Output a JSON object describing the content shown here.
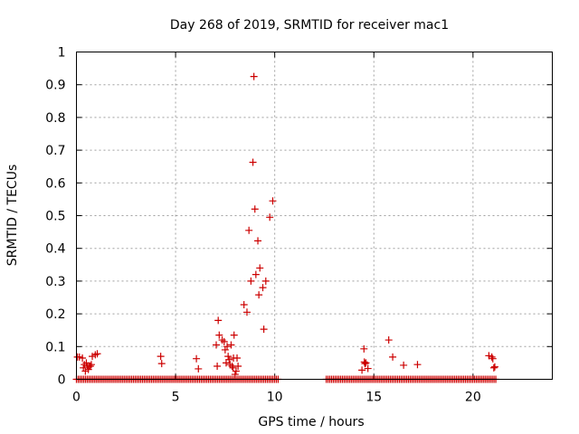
{
  "chart_data": {
    "type": "scatter",
    "title": "Day 268 of 2019, SRMTID for receiver mac1",
    "xlabel": "GPS time / hours",
    "ylabel": "SRMTID / TECUs",
    "xlim": [
      0,
      24
    ],
    "ylim": [
      0,
      1
    ],
    "xticks": [
      0,
      5,
      10,
      15,
      20
    ],
    "yticks": [
      0,
      0.1,
      0.2,
      0.3,
      0.4,
      0.5,
      0.6,
      0.7,
      0.8,
      0.9,
      1
    ],
    "xtick_labels": [
      "0",
      "5",
      "10",
      "15",
      "20"
    ],
    "ytick_labels": [
      "0",
      "0.1",
      "0.2",
      "0.3",
      "0.4",
      "0.5",
      "0.6",
      "0.7",
      "0.8",
      "0.9",
      "1"
    ],
    "grid": true,
    "marker": "+",
    "marker_color": "#cc0000",
    "zero_segments": [
      [
        0.0,
        10.25
      ],
      [
        12.6,
        21.15
      ]
    ],
    "zero_step": 0.09,
    "points": [
      [
        0.05,
        0.068
      ],
      [
        0.15,
        0.068
      ],
      [
        0.3,
        0.065
      ],
      [
        0.35,
        0.035
      ],
      [
        0.4,
        0.045
      ],
      [
        0.45,
        0.025
      ],
      [
        0.5,
        0.05
      ],
      [
        0.55,
        0.04
      ],
      [
        0.6,
        0.03
      ],
      [
        0.65,
        0.04
      ],
      [
        0.7,
        0.04
      ],
      [
        0.75,
        0.045
      ],
      [
        0.8,
        0.07
      ],
      [
        0.95,
        0.075
      ],
      [
        1.05,
        0.078
      ],
      [
        4.25,
        0.07
      ],
      [
        4.3,
        0.048
      ],
      [
        6.05,
        0.063
      ],
      [
        6.15,
        0.032
      ],
      [
        7.05,
        0.105
      ],
      [
        7.1,
        0.04
      ],
      [
        7.15,
        0.18
      ],
      [
        7.2,
        0.135
      ],
      [
        7.35,
        0.12
      ],
      [
        7.45,
        0.115
      ],
      [
        7.5,
        0.09
      ],
      [
        7.55,
        0.05
      ],
      [
        7.6,
        0.1
      ],
      [
        7.65,
        0.07
      ],
      [
        7.7,
        0.06
      ],
      [
        7.75,
        0.045
      ],
      [
        7.8,
        0.105
      ],
      [
        7.85,
        0.04
      ],
      [
        7.9,
        0.035
      ],
      [
        7.92,
        0.065
      ],
      [
        7.95,
        0.135
      ],
      [
        8.0,
        0.015
      ],
      [
        8.05,
        0.025
      ],
      [
        8.1,
        0.065
      ],
      [
        8.15,
        0.04
      ],
      [
        8.45,
        0.228
      ],
      [
        8.6,
        0.205
      ],
      [
        8.7,
        0.455
      ],
      [
        8.8,
        0.3
      ],
      [
        8.9,
        0.663
      ],
      [
        8.95,
        0.925
      ],
      [
        9.0,
        0.52
      ],
      [
        9.05,
        0.32
      ],
      [
        9.15,
        0.423
      ],
      [
        9.2,
        0.258
      ],
      [
        9.25,
        0.34
      ],
      [
        9.4,
        0.28
      ],
      [
        9.45,
        0.153
      ],
      [
        9.55,
        0.3
      ],
      [
        9.75,
        0.495
      ],
      [
        9.9,
        0.545
      ],
      [
        14.4,
        0.028
      ],
      [
        14.5,
        0.093
      ],
      [
        14.52,
        0.053
      ],
      [
        14.55,
        0.048
      ],
      [
        14.6,
        0.05
      ],
      [
        14.7,
        0.033
      ],
      [
        15.75,
        0.12
      ],
      [
        15.95,
        0.068
      ],
      [
        16.5,
        0.043
      ],
      [
        17.2,
        0.045
      ],
      [
        20.8,
        0.072
      ],
      [
        20.95,
        0.068
      ],
      [
        21.0,
        0.063
      ],
      [
        21.05,
        0.035
      ],
      [
        21.1,
        0.038
      ]
    ]
  }
}
